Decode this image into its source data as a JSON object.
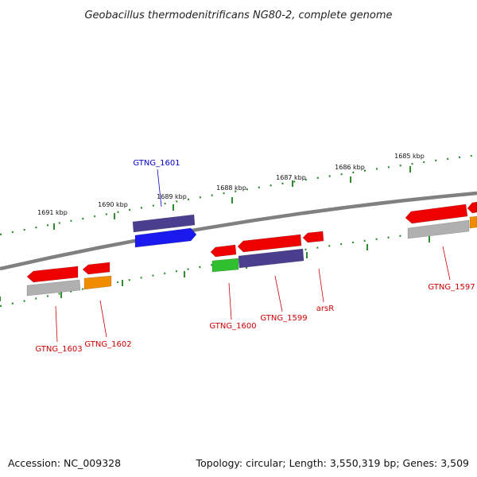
{
  "title": "Geobacillus thermodenitrificans NG80-2, complete genome",
  "footer": {
    "accession": "Accession: NC_009328",
    "summary": "Topology: circular; Length: 3,550,319 bp; Genes: 3,509"
  },
  "scale": {
    "tick_labels": [
      "1691 kbp",
      "1690 kbp",
      "1689 kbp",
      "1688 kbp",
      "1687 kbp",
      "1686 kbp",
      "1685 kbp"
    ]
  },
  "genes": [
    {
      "label": "GTNG_1601",
      "color": "#0000cc"
    },
    {
      "label": "GTNG_1603",
      "color": "#cc0000"
    },
    {
      "label": "GTNG_1602",
      "color": "#cc0000"
    },
    {
      "label": "GTNG_1600",
      "color": "#cc0000"
    },
    {
      "label": "GTNG_1599",
      "color": "#cc0000"
    },
    {
      "label": "arsR",
      "color": "#cc0000"
    },
    {
      "label": "GTNG_1597",
      "color": "#cc0000"
    }
  ],
  "colors": {
    "backbone": "#808080",
    "scale": "#2e8b2e",
    "cds_red": "#ee0000",
    "cds_blue": "#1a1aee",
    "cds_purple": "#4a3f8f",
    "cds_gray": "#b0b0b0",
    "cds_orange": "#f08c00",
    "cds_green": "#2fbf2f"
  }
}
